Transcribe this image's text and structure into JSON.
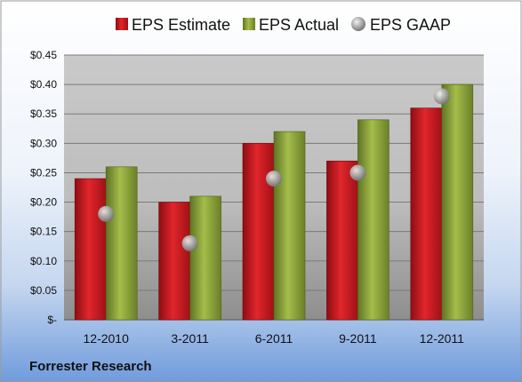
{
  "chart_data": {
    "type": "bar",
    "categories": [
      "12-2010",
      "3-2011",
      "6-2011",
      "9-2011",
      "12-2011"
    ],
    "series": [
      {
        "name": "EPS Estimate",
        "kind": "bar",
        "color": "#c8161d",
        "values": [
          0.24,
          0.2,
          0.3,
          0.27,
          0.36
        ]
      },
      {
        "name": "EPS Actual",
        "kind": "bar",
        "color": "#8fa83c",
        "values": [
          0.26,
          0.21,
          0.32,
          0.34,
          0.4
        ]
      },
      {
        "name": "EPS GAAP",
        "kind": "marker",
        "color": "#a8a8a8",
        "values": [
          0.18,
          0.13,
          0.24,
          0.25,
          0.38
        ]
      }
    ],
    "ylim": [
      0,
      0.45
    ],
    "yticks": [
      0,
      0.05,
      0.1,
      0.15,
      0.2,
      0.25,
      0.3,
      0.35,
      0.4,
      0.45
    ],
    "ytick_labels": [
      "$-",
      "$0.05",
      "$0.10",
      "$0.15",
      "$0.20",
      "$0.25",
      "$0.30",
      "$0.35",
      "$0.40",
      "$0.45"
    ],
    "grid": true,
    "legend_position": "top"
  },
  "footer": {
    "company": "Forrester Research"
  }
}
